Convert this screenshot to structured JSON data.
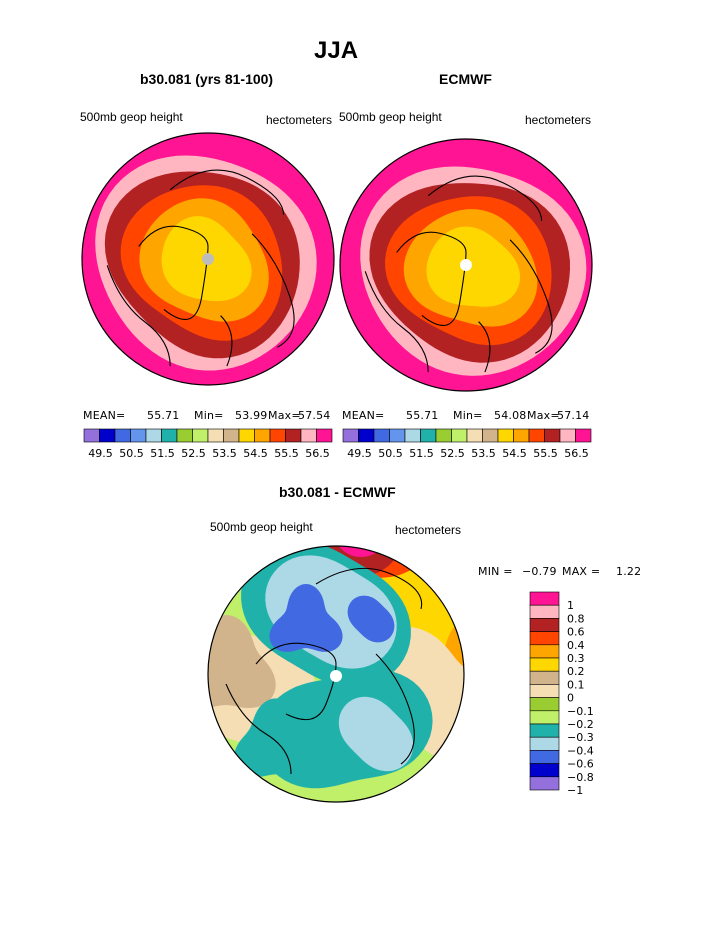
{
  "page_title": "JJA",
  "chart_data": [
    {
      "type": "polar-contour-map",
      "title": "b30.081 (yrs 81-100)",
      "left_label": "500mb geop height",
      "right_label": "hectometers",
      "stats": {
        "mean_label": "MEAN=",
        "mean": "55.71",
        "min_label": "Min=",
        "min": "53.99",
        "max_label": "Max=",
        "max": "57.54"
      },
      "levels": [
        "49.5",
        "50.5",
        "51.5",
        "52.5",
        "53.5",
        "54.5",
        "55.5",
        "56.5"
      ],
      "colors": [
        "#9370db",
        "#0000cd",
        "#4169e1",
        "#6495ed",
        "#add8e6",
        "#20b2aa",
        "#9acd32",
        "#c0ef6a",
        "#f5deb3",
        "#d2b48c",
        "#ffd700",
        "#ffa500",
        "#ff4500",
        "#b22222",
        "#ffb6c1",
        "#ff1493"
      ]
    },
    {
      "type": "polar-contour-map",
      "title": "ECMWF",
      "left_label": "500mb geop height",
      "right_label": "hectometers",
      "stats": {
        "mean_label": "MEAN=",
        "mean": "55.71",
        "min_label": "Min=",
        "min": "54.08",
        "max_label": "Max=",
        "max": "57.14"
      },
      "levels": [
        "49.5",
        "50.5",
        "51.5",
        "52.5",
        "53.5",
        "54.5",
        "55.5",
        "56.5"
      ],
      "colors": [
        "#9370db",
        "#0000cd",
        "#4169e1",
        "#6495ed",
        "#add8e6",
        "#20b2aa",
        "#9acd32",
        "#c0ef6a",
        "#f5deb3",
        "#d2b48c",
        "#ffd700",
        "#ffa500",
        "#ff4500",
        "#b22222",
        "#ffb6c1",
        "#ff1493"
      ]
    },
    {
      "type": "polar-contour-map",
      "title": "b30.081 - ECMWF",
      "left_label": "500mb geop height",
      "right_label": "hectometers",
      "stats": {
        "min_label": "MIN =",
        "min": "−0.79",
        "max_label": "MAX =",
        "max": "1.22"
      },
      "levels": [
        "1",
        "0.8",
        "0.6",
        "0.4",
        "0.3",
        "0.2",
        "0.1",
        "0",
        "−0.1",
        "−0.2",
        "−0.3",
        "−0.4",
        "−0.6",
        "−0.8",
        "−1"
      ],
      "colors": [
        "#ff1493",
        "#ffb6c1",
        "#b22222",
        "#ff4500",
        "#ffa500",
        "#ffd700",
        "#d2b48c",
        "#f5deb3",
        "#9acd32",
        "#c0ef6a",
        "#20b2aa",
        "#add8e6",
        "#4169e1",
        "#0000cd",
        "#9370db"
      ]
    }
  ]
}
